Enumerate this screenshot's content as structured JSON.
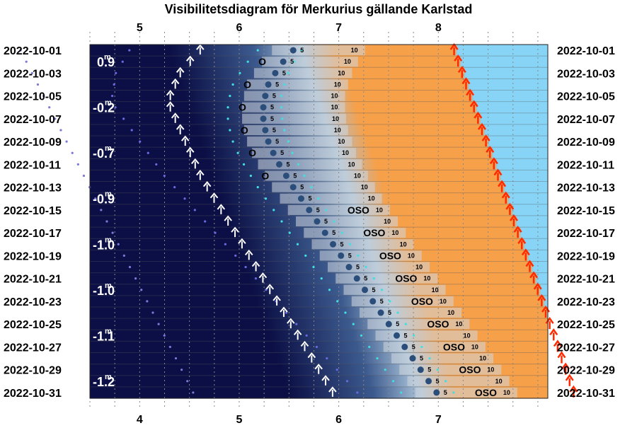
{
  "title": "Visibilitetsdiagram för Merkurius gällande Karlstad",
  "chart_data": {
    "type": "heatmap",
    "title": "Visibilitetsdiagram för Merkurius gällande Karlstad",
    "x_top": {
      "ticks": [
        5,
        6,
        7,
        8
      ],
      "range": [
        4.5,
        9.1
      ]
    },
    "x_bottom": {
      "ticks": [
        4,
        5,
        6,
        7
      ],
      "range": [
        3.5,
        8.1
      ]
    },
    "dates": [
      "2022-10-01",
      "2022-10-03",
      "2022-10-05",
      "2022-10-07",
      "2022-10-09",
      "2022-10-11",
      "2022-10-13",
      "2022-10-15",
      "2022-10-17",
      "2022-10-19",
      "2022-10-21",
      "2022-10-23",
      "2022-10-25",
      "2022-10-27",
      "2022-10-29",
      "2022-10-31"
    ],
    "magnitudes": [
      "0.9",
      "-0.2",
      "-0.7",
      "-0.9",
      "-1.0",
      "-1.0",
      "-1.1",
      "-1.2"
    ],
    "magnitude_superscript": "m",
    "day_offsets": [
      0,
      1,
      2,
      3,
      4,
      5,
      6,
      7,
      8,
      9,
      10,
      11,
      12,
      13,
      14,
      15,
      16,
      17,
      18,
      19,
      20,
      21,
      22,
      23,
      24,
      25,
      26,
      27,
      28,
      29,
      30
    ],
    "sunrise": [
      8.18,
      8.22,
      8.26,
      8.3,
      8.34,
      8.38,
      8.42,
      8.46,
      8.5,
      8.54,
      8.58,
      8.62,
      8.66,
      8.7,
      8.74,
      8.78,
      8.82,
      8.86,
      8.9,
      8.94,
      8.98,
      9.02,
      9.06,
      9.1,
      9.14,
      9.18,
      9.22,
      9.26,
      9.3,
      9.34,
      9.38
    ],
    "civil_dawn": [
      7.55,
      7.59,
      7.63,
      7.67,
      7.71,
      7.75,
      7.79,
      7.83,
      7.87,
      7.91,
      7.95,
      7.99,
      8.03,
      8.07,
      8.11,
      8.15,
      8.19,
      8.23,
      8.27,
      8.31,
      8.35,
      8.39,
      8.43,
      8.47,
      8.51,
      8.55,
      8.59,
      8.63,
      8.67,
      8.71,
      8.75
    ],
    "nautical_dawn": [
      6.9,
      6.94,
      6.98,
      7.02,
      7.06,
      7.1,
      7.14,
      7.18,
      7.22,
      7.26,
      7.3,
      7.34,
      7.38,
      7.42,
      7.46,
      7.5,
      7.54,
      7.58,
      7.62,
      7.66,
      7.7,
      7.74,
      7.78,
      7.82,
      7.86,
      7.9,
      7.94,
      7.98,
      8.02,
      8.06,
      8.1
    ],
    "astronomical_dawn": [
      6.15,
      6.19,
      6.23,
      6.27,
      6.31,
      6.35,
      6.39,
      6.43,
      6.47,
      6.51,
      6.55,
      6.59,
      6.63,
      6.67,
      6.71,
      6.75,
      6.79,
      6.83,
      6.87,
      6.91,
      6.95,
      6.99,
      7.03,
      7.07,
      7.11,
      7.15,
      7.19,
      7.23,
      7.27,
      7.31,
      7.35
    ],
    "mercury_rise": [
      5.75,
      5.65,
      5.55,
      5.5,
      5.45,
      5.45,
      5.5,
      5.55,
      5.6,
      5.65,
      5.7,
      5.75,
      5.82,
      5.89,
      5.96,
      6.03,
      6.1,
      6.17,
      6.24,
      6.31,
      6.38,
      6.45,
      6.52,
      6.59,
      6.66,
      6.73,
      6.8,
      6.87,
      6.94,
      7.01,
      7.08
    ],
    "alt5_time": [
      6.4,
      6.3,
      6.22,
      6.15,
      6.12,
      6.1,
      6.1,
      6.12,
      6.15,
      6.2,
      6.26,
      6.33,
      6.4,
      6.48,
      6.56,
      6.64,
      6.72,
      6.8,
      6.88,
      6.96,
      7.04,
      7.12,
      7.2,
      7.28,
      7.36,
      7.44,
      7.52,
      7.6,
      7.68,
      7.76,
      7.84
    ],
    "alt10_time": [
      7.05,
      6.98,
      6.92,
      6.88,
      6.85,
      6.85,
      6.86,
      6.88,
      6.92,
      6.96,
      7.02,
      7.08,
      7.15,
      7.22,
      7.3,
      7.38,
      7.46,
      7.54,
      7.62,
      7.7,
      7.78,
      7.86,
      7.94,
      8.02,
      8.1,
      8.18,
      8.26,
      8.34,
      8.42,
      8.5,
      8.58
    ],
    "alt_labels": [
      "5",
      "10"
    ],
    "direction_labels": [
      "O",
      "OSO"
    ],
    "colors": {
      "night": "#0b0f45",
      "astronomical": "#3c5a8e",
      "nautical": "#a9c2d8",
      "civil": "#f6a04a",
      "day": "#87d4f7",
      "rise_arrow": "#ffffff",
      "sun_arrow": "#ff2a00",
      "mercury_dot": "#1a2a4a"
    },
    "grid": true
  }
}
